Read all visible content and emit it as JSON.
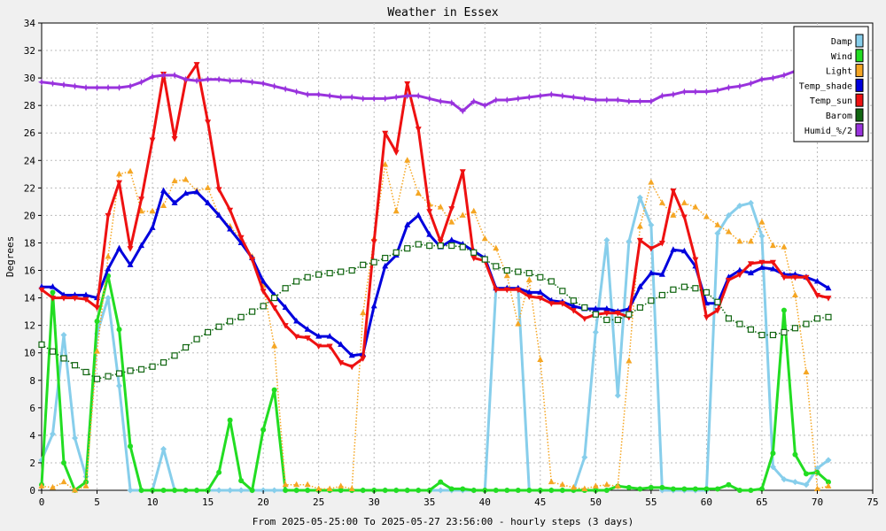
{
  "chart_data": {
    "type": "line",
    "title": "Weather in Essex",
    "ylabel": "Degrees",
    "xlabel": "From 2025-05-25:00 To 2025-05-27 23:56:00 - hourly steps (3 days)",
    "xlim": [
      0,
      75
    ],
    "ylim": [
      0,
      34
    ],
    "x_ticks": [
      0,
      5,
      10,
      15,
      20,
      25,
      30,
      35,
      40,
      45,
      50,
      55,
      60,
      65,
      70,
      75
    ],
    "y_ticks": [
      0,
      2,
      4,
      6,
      8,
      10,
      12,
      14,
      16,
      18,
      20,
      22,
      24,
      26,
      28,
      30,
      32,
      34
    ],
    "grid": true,
    "legend_position": "top-right",
    "series": [
      {
        "name": "Damp",
        "color": "#87ceeb",
        "style": "solid",
        "marker": "diamond",
        "width": 3,
        "x": [
          0,
          1,
          2,
          3,
          4,
          5,
          6,
          7,
          8,
          9,
          10,
          11,
          12,
          13,
          14,
          15,
          16,
          17,
          18,
          19,
          20,
          21,
          22,
          23,
          24,
          25,
          26,
          27,
          28,
          29,
          30,
          31,
          32,
          33,
          34,
          35,
          36,
          37,
          38,
          39,
          40,
          41,
          42,
          43,
          44,
          45,
          46,
          47,
          48,
          49,
          50,
          51,
          52,
          53,
          54,
          55,
          56,
          57,
          58,
          59,
          60,
          61,
          62,
          63,
          64,
          65,
          66,
          67,
          68,
          69,
          70,
          71
        ],
        "values": [
          2.2,
          4.1,
          11.3,
          3.8,
          1.0,
          11.4,
          14.0,
          7.6,
          0,
          0,
          0,
          3.0,
          0,
          0,
          0,
          0,
          0,
          0,
          0,
          0,
          0,
          0,
          0,
          0,
          0,
          0,
          0,
          0,
          0,
          0,
          0,
          0,
          0,
          0,
          0,
          0,
          0,
          0,
          0,
          0,
          0,
          14.7,
          14.7,
          14.7,
          0,
          0,
          0,
          0,
          0,
          2.4,
          11.5,
          18.2,
          6.9,
          18.1,
          21.3,
          19.3,
          0,
          0,
          0,
          0,
          0,
          18.7,
          20.0,
          20.7,
          20.9,
          18.5,
          1.7,
          0.8,
          0.6,
          0.4,
          1.6,
          2.2
        ]
      },
      {
        "name": "Wind",
        "color": "#22dd22",
        "style": "solid",
        "marker": "circle",
        "width": 3,
        "x": [
          0,
          1,
          2,
          3,
          4,
          5,
          6,
          7,
          8,
          9,
          10,
          11,
          12,
          13,
          14,
          15,
          16,
          17,
          18,
          19,
          20,
          21,
          22,
          23,
          24,
          25,
          26,
          27,
          28,
          29,
          30,
          31,
          32,
          33,
          34,
          35,
          36,
          37,
          38,
          39,
          40,
          41,
          42,
          43,
          44,
          45,
          46,
          47,
          48,
          49,
          50,
          51,
          52,
          53,
          54,
          55,
          56,
          57,
          58,
          59,
          60,
          61,
          62,
          63,
          64,
          65,
          66,
          67,
          68,
          69,
          70,
          71
        ],
        "values": [
          0.4,
          14.4,
          2.0,
          0,
          0.6,
          12.3,
          15.6,
          11.7,
          3.2,
          0,
          0,
          0,
          0,
          0,
          0,
          0,
          1.3,
          5.1,
          0.7,
          0,
          4.4,
          7.3,
          0,
          0,
          0,
          0,
          0,
          0,
          0,
          0,
          0,
          0,
          0,
          0,
          0,
          0,
          0.6,
          0.1,
          0.1,
          0,
          0,
          0,
          0,
          0,
          0,
          0,
          0,
          0,
          0,
          0,
          0,
          0,
          0.3,
          0.2,
          0.1,
          0.2,
          0.2,
          0.1,
          0.1,
          0.1,
          0.1,
          0.1,
          0.4,
          0,
          0,
          0.1,
          2.7,
          13.1,
          2.6,
          1.2,
          1.3,
          0.6
        ]
      },
      {
        "name": "Light",
        "color": "#f5a623",
        "style": "dotted",
        "marker": "triangle-up",
        "width": 1.5,
        "x": [
          0,
          1,
          2,
          3,
          4,
          5,
          6,
          7,
          8,
          9,
          10,
          11,
          12,
          13,
          14,
          15,
          16,
          17,
          18,
          19,
          20,
          21,
          22,
          23,
          24,
          25,
          26,
          27,
          28,
          29,
          30,
          31,
          32,
          33,
          34,
          35,
          36,
          37,
          38,
          39,
          40,
          41,
          42,
          43,
          44,
          45,
          46,
          47,
          48,
          49,
          50,
          51,
          52,
          53,
          54,
          55,
          56,
          57,
          58,
          59,
          60,
          61,
          62,
          63,
          64,
          65,
          66,
          67,
          68,
          69,
          70,
          71
        ],
        "values": [
          0.3,
          0.2,
          0.6,
          0,
          0.3,
          10.1,
          17.0,
          23.0,
          23.2,
          20.3,
          20.3,
          20.7,
          22.5,
          22.6,
          21.8,
          22.0,
          20.0,
          19.2,
          18.3,
          17.0,
          14.9,
          10.5,
          0.4,
          0.4,
          0.4,
          0.1,
          0.1,
          0.3,
          0.1,
          12.9,
          18.3,
          23.7,
          20.3,
          24.0,
          21.6,
          20.8,
          20.6,
          19.5,
          20.0,
          20.3,
          18.3,
          17.6,
          15.6,
          12.1,
          15.3,
          9.5,
          0.6,
          0.4,
          0.2,
          0.1,
          0.3,
          0.4,
          0.3,
          9.4,
          19.2,
          22.4,
          20.9,
          20.0,
          20.9,
          20.6,
          19.9,
          19.3,
          18.8,
          18.1,
          18.1,
          19.5,
          17.8,
          17.7,
          14.2,
          8.6,
          0.1,
          0.3
        ]
      },
      {
        "name": "Temp_shade",
        "color": "#0000dd",
        "style": "solid",
        "marker": "triangle-up",
        "width": 3,
        "x": [
          0,
          1,
          2,
          3,
          4,
          5,
          6,
          7,
          8,
          9,
          10,
          11,
          12,
          13,
          14,
          15,
          16,
          17,
          18,
          19,
          20,
          21,
          22,
          23,
          24,
          25,
          26,
          27,
          28,
          29,
          30,
          31,
          32,
          33,
          34,
          35,
          36,
          37,
          38,
          39,
          40,
          41,
          42,
          43,
          44,
          45,
          46,
          47,
          48,
          49,
          50,
          51,
          52,
          53,
          54,
          55,
          56,
          57,
          58,
          59,
          60,
          61,
          62,
          63,
          64,
          65,
          66,
          67,
          68,
          69,
          70,
          71
        ],
        "values": [
          14.8,
          14.8,
          14.2,
          14.2,
          14.2,
          14.0,
          16.1,
          17.6,
          16.4,
          17.8,
          19.1,
          21.8,
          20.9,
          21.6,
          21.7,
          20.9,
          20.0,
          19.0,
          18.0,
          16.9,
          15.2,
          14.2,
          13.3,
          12.3,
          11.7,
          11.2,
          11.2,
          10.6,
          9.8,
          9.9,
          13.4,
          16.3,
          17.1,
          19.3,
          20.0,
          18.6,
          17.7,
          18.2,
          17.9,
          17.4,
          16.9,
          14.7,
          14.7,
          14.7,
          14.4,
          14.4,
          13.8,
          13.7,
          13.4,
          13.2,
          13.2,
          13.2,
          13.0,
          13.2,
          14.8,
          15.8,
          15.7,
          17.5,
          17.4,
          16.3,
          13.6,
          13.6,
          15.5,
          16.0,
          15.8,
          16.2,
          16.1,
          15.7,
          15.7,
          15.5,
          15.2,
          14.7
        ]
      },
      {
        "name": "Temp_sun",
        "color": "#ee1111",
        "style": "solid",
        "marker": "triangle-down",
        "width": 3,
        "x": [
          0,
          1,
          2,
          3,
          4,
          5,
          6,
          7,
          8,
          9,
          10,
          11,
          12,
          13,
          14,
          15,
          16,
          17,
          18,
          19,
          20,
          21,
          22,
          23,
          24,
          25,
          26,
          27,
          28,
          29,
          30,
          31,
          32,
          33,
          34,
          35,
          36,
          37,
          38,
          39,
          40,
          41,
          42,
          43,
          44,
          45,
          46,
          47,
          48,
          49,
          50,
          51,
          52,
          53,
          54,
          55,
          56,
          57,
          58,
          59,
          60,
          61,
          62,
          63,
          64,
          65,
          66,
          67,
          68,
          69,
          70,
          71
        ],
        "values": [
          14.6,
          14.0,
          14.0,
          14.0,
          13.9,
          13.3,
          20.0,
          22.4,
          17.6,
          21.2,
          25.5,
          30.3,
          25.6,
          29.8,
          31.0,
          26.8,
          21.9,
          20.4,
          18.4,
          16.8,
          14.5,
          13.3,
          12.0,
          11.2,
          11.1,
          10.5,
          10.5,
          9.3,
          9.0,
          9.6,
          18.1,
          26.0,
          24.6,
          29.6,
          26.3,
          20.3,
          18.1,
          20.5,
          23.2,
          16.9,
          16.7,
          14.6,
          14.6,
          14.6,
          14.1,
          14.0,
          13.6,
          13.6,
          13.1,
          12.5,
          12.8,
          12.9,
          12.9,
          12.6,
          18.2,
          17.6,
          18.0,
          21.8,
          19.9,
          16.8,
          12.6,
          13.1,
          15.3,
          15.7,
          16.5,
          16.6,
          16.6,
          15.5,
          15.5,
          15.5,
          14.2,
          14.0
        ]
      },
      {
        "name": "Barom",
        "color": "#116611",
        "style": "dotted",
        "marker": "square-open",
        "width": 1.5,
        "x": [
          0,
          1,
          2,
          3,
          4,
          5,
          6,
          7,
          8,
          9,
          10,
          11,
          12,
          13,
          14,
          15,
          16,
          17,
          18,
          19,
          20,
          21,
          22,
          23,
          24,
          25,
          26,
          27,
          28,
          29,
          30,
          31,
          32,
          33,
          34,
          35,
          36,
          37,
          38,
          39,
          40,
          41,
          42,
          43,
          44,
          45,
          46,
          47,
          48,
          49,
          50,
          51,
          52,
          53,
          54,
          55,
          56,
          57,
          58,
          59,
          60,
          61,
          62,
          63,
          64,
          65,
          66,
          67,
          68,
          69,
          70,
          71
        ],
        "values": [
          10.6,
          10.1,
          9.6,
          9.1,
          8.6,
          8.1,
          8.3,
          8.5,
          8.7,
          8.8,
          9.0,
          9.3,
          9.8,
          10.4,
          11.0,
          11.5,
          11.9,
          12.3,
          12.6,
          13.0,
          13.4,
          14.0,
          14.7,
          15.2,
          15.5,
          15.7,
          15.8,
          15.9,
          16.0,
          16.4,
          16.6,
          16.9,
          17.3,
          17.6,
          17.9,
          17.8,
          17.8,
          17.8,
          17.7,
          17.3,
          16.8,
          16.3,
          16.0,
          15.9,
          15.8,
          15.5,
          15.2,
          14.5,
          13.8,
          13.3,
          12.8,
          12.4,
          12.4,
          12.8,
          13.3,
          13.8,
          14.2,
          14.6,
          14.8,
          14.7,
          14.4,
          13.7,
          12.5,
          12.1,
          11.7,
          11.3,
          11.3,
          11.5,
          11.8,
          12.1,
          12.5,
          12.6
        ]
      },
      {
        "name": "Humid_%/2",
        "color": "#9933dd",
        "style": "solid",
        "marker": "star",
        "width": 3,
        "x": [
          0,
          1,
          2,
          3,
          4,
          5,
          6,
          7,
          8,
          9,
          10,
          11,
          12,
          13,
          14,
          15,
          16,
          17,
          18,
          19,
          20,
          21,
          22,
          23,
          24,
          25,
          26,
          27,
          28,
          29,
          30,
          31,
          32,
          33,
          34,
          35,
          36,
          37,
          38,
          39,
          40,
          41,
          42,
          43,
          44,
          45,
          46,
          47,
          48,
          49,
          50,
          51,
          52,
          53,
          54,
          55,
          56,
          57,
          58,
          59,
          60,
          61,
          62,
          63,
          64,
          65,
          66,
          67,
          68,
          69,
          70,
          71
        ],
        "values": [
          29.7,
          29.6,
          29.5,
          29.4,
          29.3,
          29.3,
          29.3,
          29.3,
          29.4,
          29.7,
          30.1,
          30.2,
          30.2,
          29.9,
          29.8,
          29.9,
          29.9,
          29.8,
          29.8,
          29.7,
          29.6,
          29.4,
          29.2,
          29.0,
          28.8,
          28.8,
          28.7,
          28.6,
          28.6,
          28.5,
          28.5,
          28.5,
          28.6,
          28.7,
          28.7,
          28.5,
          28.3,
          28.2,
          27.6,
          28.3,
          28.0,
          28.4,
          28.4,
          28.5,
          28.6,
          28.7,
          28.8,
          28.7,
          28.6,
          28.5,
          28.4,
          28.4,
          28.4,
          28.3,
          28.3,
          28.3,
          28.7,
          28.8,
          29.0,
          29.0,
          29.0,
          29.1,
          29.3,
          29.4,
          29.6,
          29.9,
          30.0,
          30.2,
          30.5,
          30.7,
          30.8,
          30.9
        ]
      }
    ]
  }
}
